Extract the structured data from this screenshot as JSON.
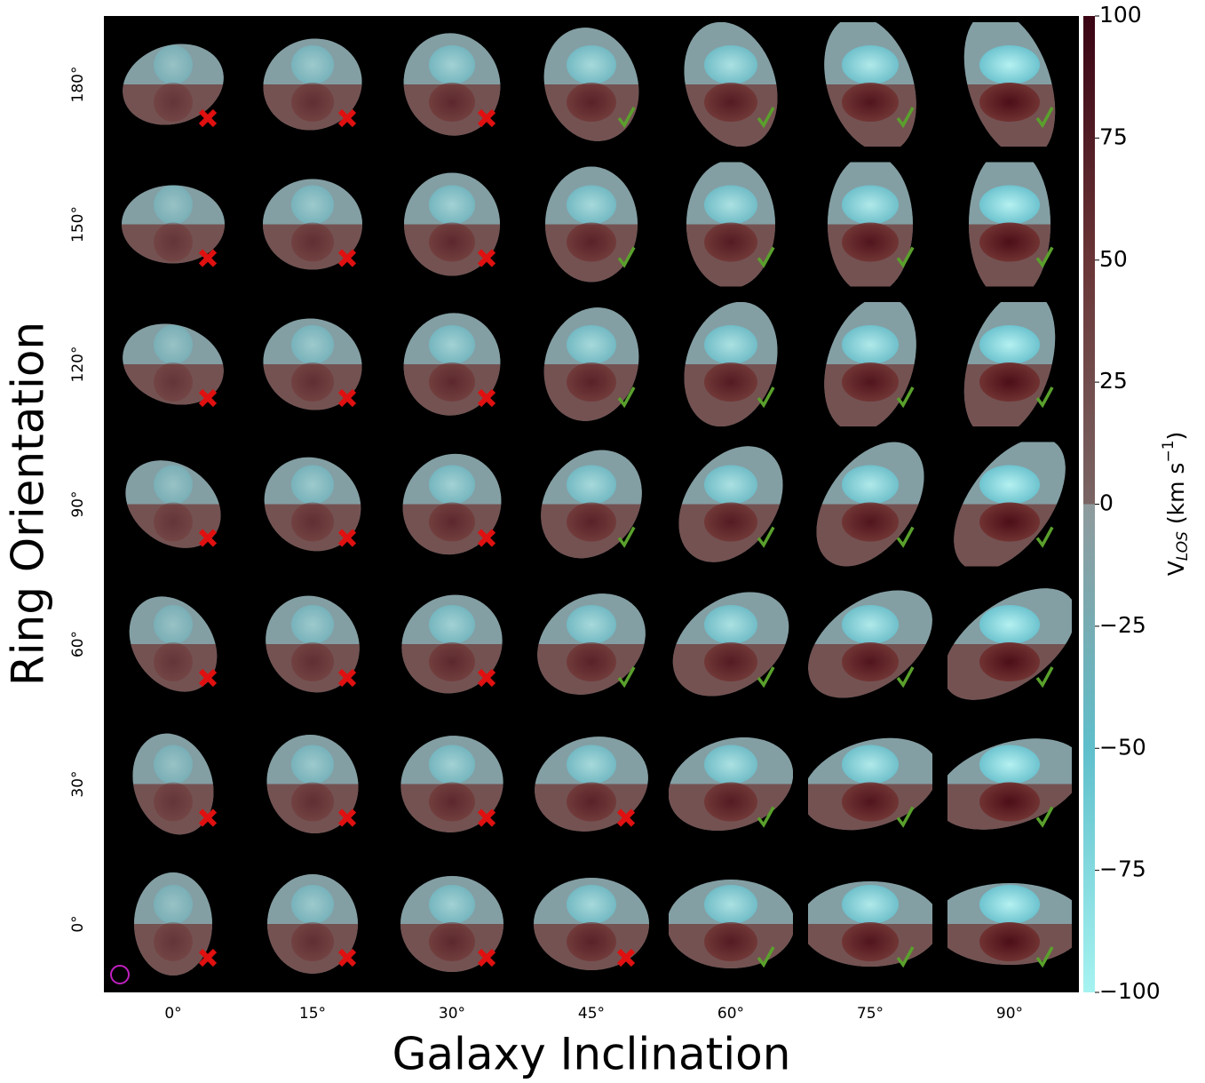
{
  "chart_data": {
    "type": "map-grid",
    "x_label": "Galaxy Inclination",
    "y_label": "Ring Orientation",
    "columns": [
      "0°",
      "15°",
      "30°",
      "45°",
      "60°",
      "75°",
      "90°"
    ],
    "rows": [
      "0°",
      "30°",
      "60°",
      "90°",
      "120°",
      "150°",
      "180°"
    ],
    "good_fit": [
      [
        false,
        false,
        false,
        false,
        true,
        true,
        true
      ],
      [
        false,
        false,
        false,
        false,
        true,
        true,
        true
      ],
      [
        false,
        false,
        false,
        true,
        true,
        true,
        true
      ],
      [
        false,
        false,
        false,
        true,
        true,
        true,
        true
      ],
      [
        false,
        false,
        false,
        true,
        true,
        true,
        true
      ],
      [
        false,
        false,
        false,
        true,
        true,
        true,
        true
      ],
      [
        false,
        false,
        false,
        true,
        true,
        true,
        true
      ]
    ],
    "colorbar_label": {
      "main": "V",
      "sub": "LOS",
      "unit": " (km s",
      "sup": "−1",
      "close": ")"
    },
    "clim": [
      -100,
      100
    ],
    "cticks": [
      {
        "value": -100,
        "label": "−100"
      },
      {
        "value": -75,
        "label": "−75"
      },
      {
        "value": -50,
        "label": "−50"
      },
      {
        "value": -25,
        "label": "−25"
      },
      0,
      25,
      50,
      75,
      100
    ]
  }
}
